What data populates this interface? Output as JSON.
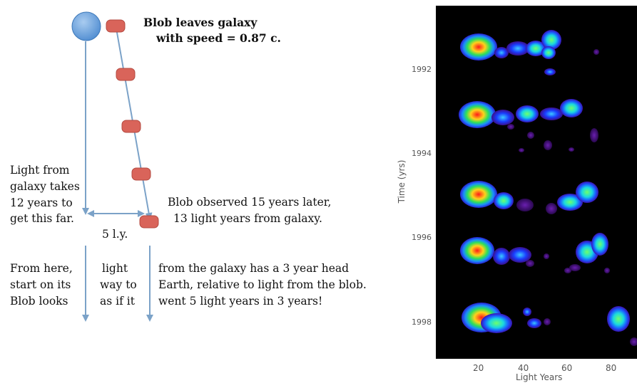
{
  "diagram": {
    "blob_leaves_line1": "Blob leaves galaxy",
    "blob_leaves_line2": "with speed = 0.87 c.",
    "light_from_lines": [
      "Light from",
      "galaxy takes",
      "12 years to",
      "get this far."
    ],
    "blob_observed_line1": "Blob observed 15 years later,",
    "blob_observed_line2": "13 light years from galaxy.",
    "separation_label": "5 l.y.",
    "bottom_col1": [
      "From here,",
      "start on its",
      "Blob looks"
    ],
    "bottom_col2": [
      "light",
      "way to",
      "as if  it"
    ],
    "bottom_col3": [
      "from the galaxy has a 3 year head",
      "Earth, relative to light from the blob.",
      "went 5 light years in 3 years!"
    ],
    "colors": {
      "galaxy": "#5b9bd5",
      "blob": "#d9645a",
      "arrow": "#7ba2c8"
    }
  },
  "chart_data": {
    "type": "heatmap",
    "xlabel": "Light Years",
    "ylabel": "Time (yrs)",
    "xticks": [
      20,
      40,
      60,
      80
    ],
    "yticks": [
      1992,
      1994,
      1996,
      1998
    ],
    "background": "#000000"
  }
}
